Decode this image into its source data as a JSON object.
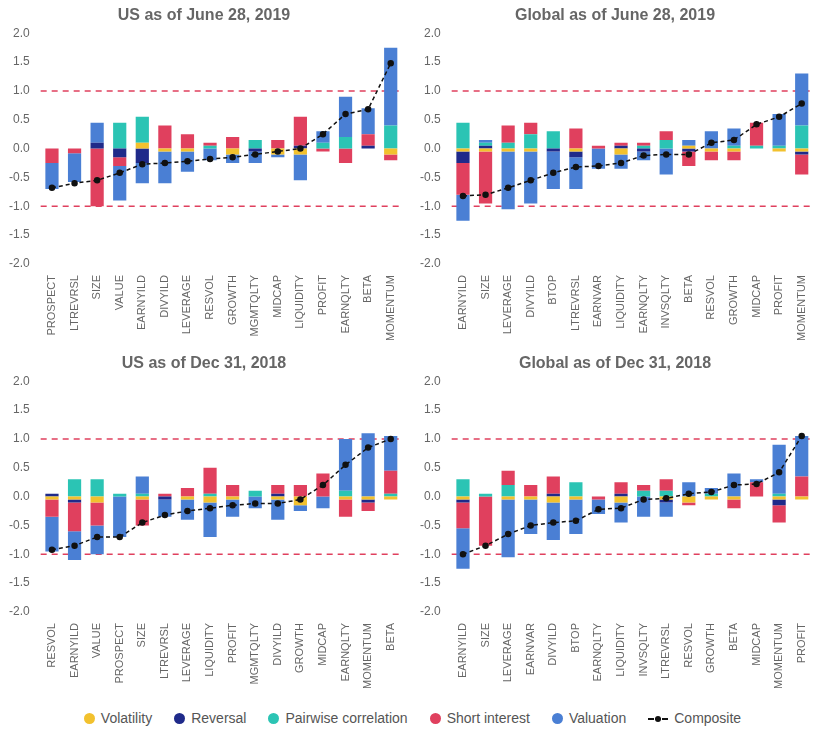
{
  "legend": "bottom",
  "chart_data": [
    {
      "type": "bar",
      "title": "US as of June 28, 2019",
      "stacked": true,
      "grid": false,
      "ylim": [
        -2,
        2
      ],
      "yticks": [
        {
          "value": -2,
          "label": "-2.0"
        },
        {
          "value": -1.5,
          "label": "-1.5"
        },
        {
          "value": -1,
          "label": "-1.0"
        },
        {
          "value": -0.5,
          "label": "-0.5"
        },
        {
          "value": 0,
          "label": "0.0"
        },
        {
          "value": 0.5,
          "label": "0.5"
        },
        {
          "value": 1,
          "label": "1.0"
        },
        {
          "value": 1.5,
          "label": "1.5"
        },
        {
          "value": 2,
          "label": "2.0"
        }
      ],
      "reference_lines": [
        1,
        -1
      ],
      "categories": [
        "PROSPECT",
        "LTREVRSL",
        "SIZE",
        "VALUE",
        "EARNYILD",
        "DIVYILD",
        "LEVERAGE",
        "RESVOL",
        "GROWTH",
        "MGMTQLTY",
        "MIDCAP",
        "LIQUIDITY",
        "PROFIT",
        "EARNQLTY",
        "BETA",
        "MOMENTUM"
      ],
      "series": [
        {
          "name": "Volatility",
          "color": "#f2c12e",
          "values": [
            0,
            0,
            0,
            0,
            0.1,
            -0.05,
            -0.05,
            0,
            -0.1,
            0,
            -0.1,
            -0.1,
            0,
            0,
            0,
            -0.1
          ]
        },
        {
          "name": "Reversal",
          "color": "#1f2a8a",
          "values": [
            0,
            0,
            0.1,
            -0.15,
            -0.25,
            0,
            0,
            0,
            0,
            -0.05,
            0,
            0.05,
            0,
            0,
            0.05,
            0
          ]
        },
        {
          "name": "Pairwise correlation",
          "color": "#2bc4b4",
          "values": [
            0,
            0,
            0,
            0.45,
            0.45,
            0,
            0,
            0.05,
            0,
            0.15,
            0,
            0,
            0.1,
            0.2,
            0,
            0.4
          ]
        },
        {
          "name": "Short interest",
          "color": "#e0405e",
          "values": [
            -0.25,
            -0.08,
            -1.0,
            -0.15,
            0,
            0.4,
            0.25,
            0.05,
            0.2,
            0,
            0.15,
            0.5,
            -0.05,
            -0.25,
            0.2,
            -0.1
          ]
        },
        {
          "name": "Valuation",
          "color": "#4a7fd4",
          "values": [
            -0.45,
            -0.5,
            0.35,
            -0.6,
            -0.35,
            -0.55,
            -0.35,
            -0.2,
            -0.15,
            -0.2,
            -0.05,
            -0.45,
            0.2,
            0.7,
            0.45,
            1.35
          ]
        },
        {
          "name": "Composite",
          "color": "#111111",
          "type": "line",
          "line_style": "dashed",
          "marker": "circle",
          "values": [
            -0.68,
            -0.6,
            -0.55,
            -0.42,
            -0.27,
            -0.25,
            -0.22,
            -0.18,
            -0.15,
            -0.1,
            -0.05,
            0.0,
            0.25,
            0.6,
            0.68,
            1.48
          ]
        }
      ]
    },
    {
      "type": "bar",
      "title": "Global as of June 28, 2019",
      "stacked": true,
      "grid": false,
      "ylim": [
        -2,
        2
      ],
      "yticks": [
        {
          "value": -2,
          "label": "-2.0"
        },
        {
          "value": -1.5,
          "label": "-1.5"
        },
        {
          "value": -1,
          "label": "-1.0"
        },
        {
          "value": -0.5,
          "label": "-0.5"
        },
        {
          "value": 0,
          "label": "0.0"
        },
        {
          "value": 0.5,
          "label": "0.5"
        },
        {
          "value": 1,
          "label": "1.0"
        },
        {
          "value": 1.5,
          "label": "1.5"
        },
        {
          "value": 2,
          "label": "2.0"
        }
      ],
      "reference_lines": [
        1,
        -1
      ],
      "categories": [
        "EARNYILD",
        "SIZE",
        "LEVERAGE",
        "DIVYILD",
        "BTOP",
        "LTREVRSL",
        "EARNVAR",
        "LIQUIDITY",
        "EARNQLTY",
        "INVSQLTY",
        "BETA",
        "RESVOL",
        "GROWTH",
        "MIDCAP",
        "PROFIT",
        "MOMENTUM"
      ],
      "series": [
        {
          "name": "Volatility",
          "color": "#f2c12e",
          "values": [
            -0.05,
            -0.05,
            -0.05,
            -0.05,
            0,
            -0.05,
            0,
            -0.1,
            0,
            0,
            0.05,
            -0.05,
            -0.05,
            0,
            -0.05,
            -0.05
          ]
        },
        {
          "name": "Reversal",
          "color": "#1f2a8a",
          "values": [
            -0.2,
            0.05,
            0,
            0,
            -0.05,
            -0.1,
            0,
            0.05,
            -0.05,
            0,
            -0.05,
            0,
            0,
            0,
            0,
            -0.05
          ]
        },
        {
          "name": "Pairwise correlation",
          "color": "#2bc4b4",
          "values": [
            0.45,
            0.05,
            0.1,
            0.25,
            0.3,
            0,
            0,
            0,
            0.05,
            0.15,
            0,
            0,
            0.05,
            0.05,
            0.05,
            0.4
          ]
        },
        {
          "name": "Short interest",
          "color": "#e0405e",
          "values": [
            -0.55,
            -0.9,
            0.3,
            0.2,
            0,
            0.35,
            0.05,
            0.05,
            0.05,
            0.15,
            -0.25,
            -0.15,
            -0.15,
            0.4,
            0,
            -0.35
          ]
        },
        {
          "name": "Valuation",
          "color": "#4a7fd4",
          "values": [
            -0.45,
            0.05,
            -1.0,
            -0.9,
            -0.65,
            -0.55,
            -0.35,
            -0.25,
            -0.15,
            -0.45,
            0.1,
            0.3,
            0.3,
            0,
            0.55,
            0.9
          ]
        },
        {
          "name": "Composite",
          "color": "#111111",
          "type": "line",
          "line_style": "dashed",
          "marker": "circle",
          "values": [
            -0.82,
            -0.8,
            -0.68,
            -0.55,
            -0.42,
            -0.32,
            -0.3,
            -0.25,
            -0.12,
            -0.1,
            -0.1,
            0.1,
            0.15,
            0.42,
            0.55,
            0.78
          ]
        }
      ]
    },
    {
      "type": "bar",
      "title": "US as of Dec 31, 2018",
      "stacked": true,
      "grid": false,
      "ylim": [
        -2,
        2
      ],
      "yticks": [
        {
          "value": -2,
          "label": "-2.0"
        },
        {
          "value": -1.5,
          "label": "-1.5"
        },
        {
          "value": -1,
          "label": "-1.0"
        },
        {
          "value": -0.5,
          "label": "-0.5"
        },
        {
          "value": 0,
          "label": "0.0"
        },
        {
          "value": 0.5,
          "label": "0.5"
        },
        {
          "value": 1,
          "label": "1.0"
        },
        {
          "value": 1.5,
          "label": "1.5"
        },
        {
          "value": 2,
          "label": "2.0"
        }
      ],
      "reference_lines": [
        1,
        -1
      ],
      "categories": [
        "RESVOL",
        "EARNYILD",
        "VALUE",
        "PROSPECT",
        "SIZE",
        "LTREVRSL",
        "LEVERAGE",
        "LIQUIDITY",
        "PROFIT",
        "MGMTQLTY",
        "DIVYILD",
        "GROWTH",
        "MIDCAP",
        "EARNQLTY",
        "MOMENTUM",
        "BETA"
      ],
      "series": [
        {
          "name": "Volatility",
          "color": "#f2c12e",
          "values": [
            -0.05,
            -0.05,
            -0.1,
            0,
            -0.05,
            0,
            -0.05,
            -0.1,
            -0.05,
            0,
            -0.05,
            -0.15,
            0,
            -0.05,
            -0.05,
            -0.05
          ]
        },
        {
          "name": "Reversal",
          "color": "#1f2a8a",
          "values": [
            0.05,
            -0.05,
            0,
            0,
            0,
            -0.05,
            0,
            0,
            0,
            0,
            0.05,
            0,
            0,
            0,
            -0.05,
            0
          ]
        },
        {
          "name": "Pairwise correlation",
          "color": "#2bc4b4",
          "values": [
            0,
            0.3,
            0.3,
            0.05,
            0.05,
            0,
            0,
            0.05,
            0,
            0.1,
            0,
            0,
            0,
            0.1,
            0,
            0.05
          ]
        },
        {
          "name": "Short interest",
          "color": "#e0405e",
          "values": [
            -0.3,
            -0.5,
            -0.4,
            0,
            -0.45,
            0.05,
            0.15,
            0.45,
            0.2,
            0,
            0.15,
            0.2,
            0.4,
            -0.3,
            -0.15,
            0.4
          ]
        },
        {
          "name": "Valuation",
          "color": "#4a7fd4",
          "values": [
            -0.6,
            -0.5,
            -0.5,
            -0.7,
            0.3,
            -0.3,
            -0.35,
            -0.6,
            -0.3,
            -0.2,
            -0.35,
            -0.1,
            -0.2,
            0.9,
            1.1,
            0.6
          ]
        },
        {
          "name": "Composite",
          "color": "#111111",
          "type": "line",
          "line_style": "dashed",
          "marker": "circle",
          "values": [
            -0.92,
            -0.85,
            -0.7,
            -0.7,
            -0.45,
            -0.32,
            -0.25,
            -0.2,
            -0.15,
            -0.12,
            -0.12,
            -0.05,
            0.2,
            0.55,
            0.85,
            1.0
          ]
        }
      ]
    },
    {
      "type": "bar",
      "title": "Global as of Dec 31, 2018",
      "stacked": true,
      "grid": false,
      "ylim": [
        -2,
        2
      ],
      "yticks": [
        {
          "value": -2,
          "label": "-2.0"
        },
        {
          "value": -1.5,
          "label": "-1.5"
        },
        {
          "value": -1,
          "label": "-1.0"
        },
        {
          "value": -0.5,
          "label": "-0.5"
        },
        {
          "value": 0,
          "label": "0.0"
        },
        {
          "value": 0.5,
          "label": "0.5"
        },
        {
          "value": 1,
          "label": "1.0"
        },
        {
          "value": 1.5,
          "label": "1.5"
        },
        {
          "value": 2,
          "label": "2.0"
        }
      ],
      "reference_lines": [
        1,
        -1
      ],
      "categories": [
        "EARNYILD",
        "SIZE",
        "LEVERAGE",
        "EARNVAR",
        "DIVYILD",
        "BTOP",
        "EARNQLTY",
        "LIQUIDITY",
        "INVSQLTY",
        "LTREVRSL",
        "RESVOL",
        "GROWTH",
        "BETA",
        "MIDCAP",
        "MOMENTUM",
        "PROFIT"
      ],
      "series": [
        {
          "name": "Volatility",
          "color": "#f2c12e",
          "values": [
            -0.05,
            0,
            -0.05,
            -0.05,
            -0.1,
            -0.05,
            0,
            -0.1,
            0,
            -0.05,
            -0.1,
            -0.05,
            -0.05,
            0,
            -0.05,
            -0.05
          ]
        },
        {
          "name": "Reversal",
          "color": "#1f2a8a",
          "values": [
            -0.05,
            0,
            0,
            0,
            0.05,
            0,
            0,
            0.05,
            0,
            -0.05,
            0,
            0,
            0,
            0,
            -0.1,
            0
          ]
        },
        {
          "name": "Pairwise correlation",
          "color": "#2bc4b4",
          "values": [
            0.3,
            0.05,
            0.2,
            0,
            0,
            0.25,
            0,
            0,
            0.1,
            0.1,
            0,
            0.05,
            0,
            0,
            0.05,
            0
          ]
        },
        {
          "name": "Short interest",
          "color": "#e0405e",
          "values": [
            -0.45,
            -0.85,
            0.25,
            0.2,
            0.3,
            0,
            -0.05,
            0.2,
            0.1,
            0.2,
            -0.05,
            0,
            -0.15,
            0.25,
            -0.3,
            0.35
          ]
        },
        {
          "name": "Valuation",
          "color": "#4a7fd4",
          "values": [
            -0.7,
            0,
            -1.0,
            -0.6,
            -0.65,
            -0.6,
            -0.25,
            -0.35,
            -0.35,
            -0.25,
            0.25,
            0.1,
            0.4,
            0.05,
            0.85,
            0.7
          ]
        },
        {
          "name": "Composite",
          "color": "#111111",
          "type": "line",
          "line_style": "dashed",
          "marker": "circle",
          "values": [
            -1.0,
            -0.85,
            -0.65,
            -0.5,
            -0.45,
            -0.42,
            -0.22,
            -0.2,
            -0.05,
            -0.03,
            0.05,
            0.08,
            0.2,
            0.22,
            0.42,
            1.05
          ]
        }
      ]
    }
  ]
}
